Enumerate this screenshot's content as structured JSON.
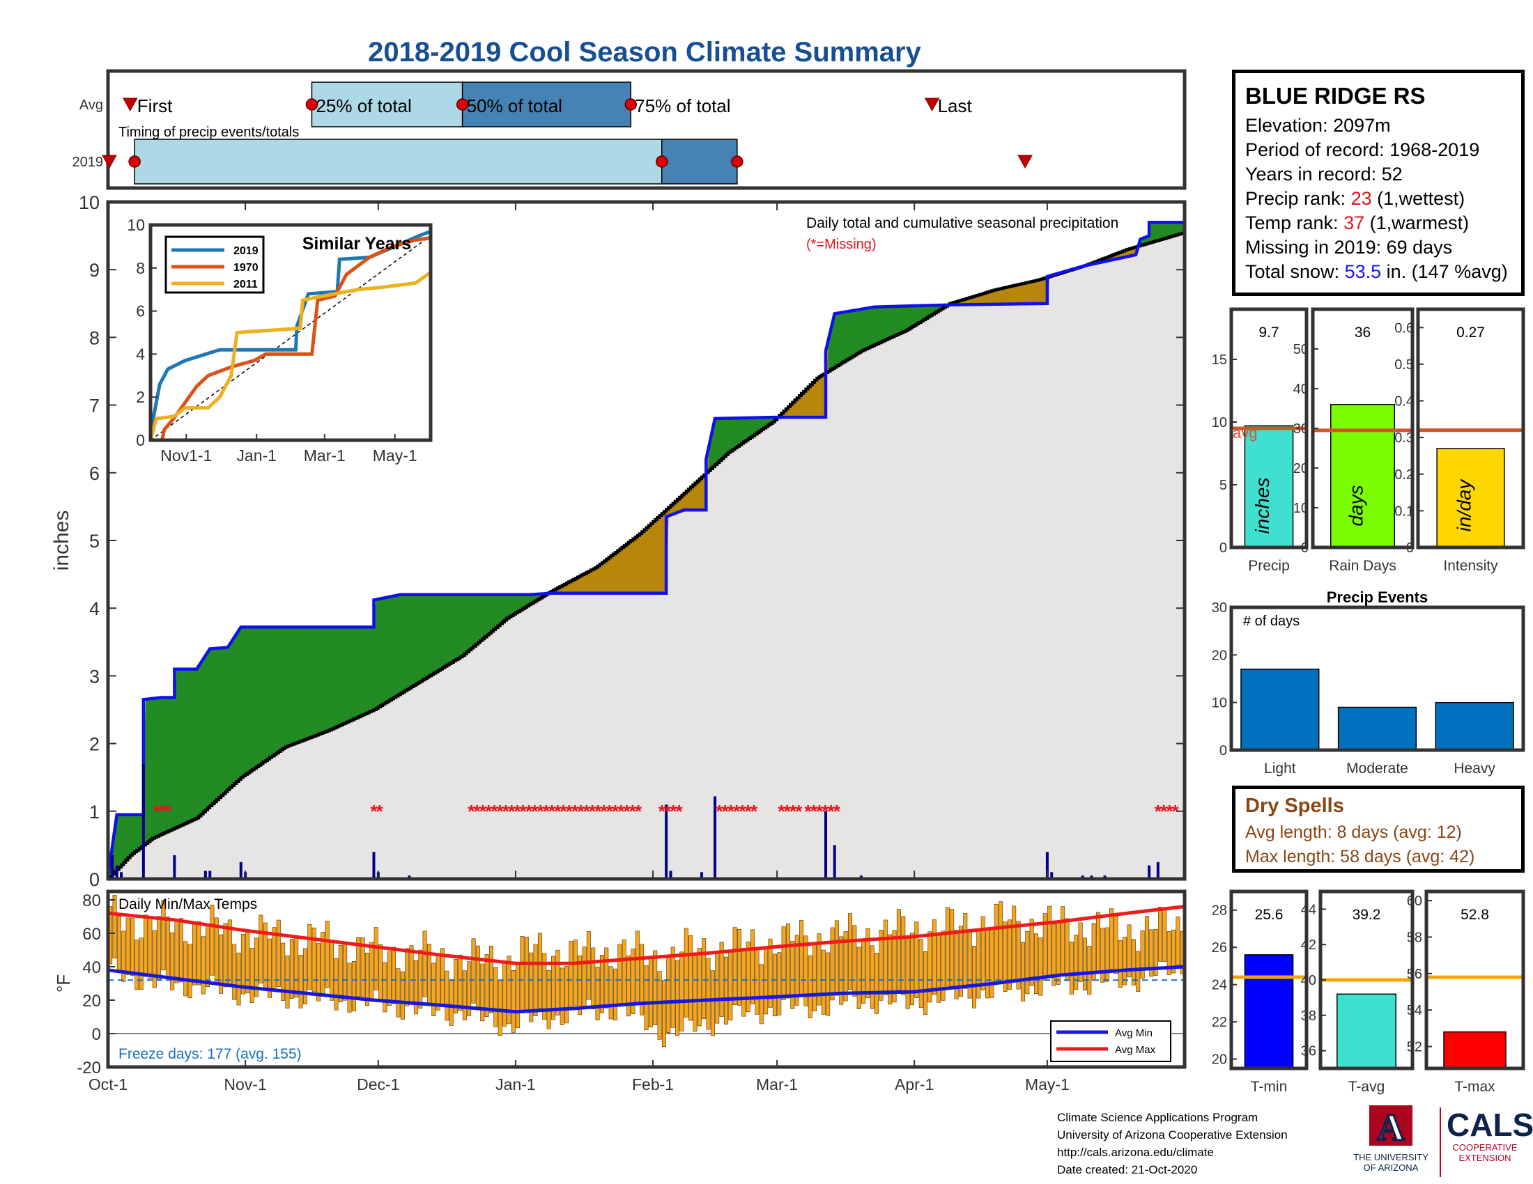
{
  "title": "2018-2019 Cool Season Climate Summary",
  "colors": {
    "title": "#174f93",
    "cumul_2019": "#1010ee",
    "avg_cumul": "#000000",
    "above_fill": "#238b23",
    "below_fill": "#b8860b",
    "avg_fill": "#e6e5e4",
    "daily_bar": "#00008b",
    "missing": "#e8141e",
    "avg_line": "#d2552a",
    "temp_bar": "#f5a51e",
    "avg_max": "#ef1a1a",
    "avg_min": "#1818dd",
    "freeze_text": "#1b6fc0",
    "light_blue": "#add8e6",
    "steel_blue": "#4682b4"
  },
  "timing": {
    "caption": "Timing of precip events/totals",
    "row_labels": [
      "Avg",
      "2019"
    ],
    "marker_labels": [
      "First",
      "25% of total",
      "50% of total",
      "75% of total",
      "Last"
    ],
    "avg": {
      "first_day": 5,
      "p25": 46,
      "p50": 80,
      "p75": 118,
      "last": 186
    },
    "y2019": {
      "first": 0,
      "p25": 6,
      "p50": 125,
      "p75": 142,
      "last": 207
    }
  },
  "main": {
    "ylabel": "inches",
    "annotation": "Daily total and cumulative seasonal precipitation",
    "missing_note": "(*=Missing)"
  },
  "inset": {
    "title": "Similar Years",
    "legend": [
      "2019",
      "1970",
      "2011"
    ]
  },
  "station": {
    "name": "BLUE RIDGE RS",
    "elevation_label": "Elevation: ",
    "elevation": "2097m",
    "period_label": "Period of record: ",
    "period": "1968-2019",
    "years_label": "Years in record: ",
    "years": "52",
    "precip_rank_label": "Precip rank: ",
    "precip_rank": "23",
    "precip_rank_note": " (1,wettest)",
    "temp_rank_label": "Temp rank: ",
    "temp_rank": "37",
    "temp_rank_note": " (1,warmest)",
    "missing_label": "Missing in 2019: ",
    "missing": "69 days",
    "snow_label": "Total snow: ",
    "snow": "53.5",
    "snow_note": " in. (147 %avg)"
  },
  "dry_spells": {
    "title": "Dry Spells",
    "avg_line": "Avg length: 8 days (avg: 12)",
    "max_line": "Max length: 58 days (avg: 42)"
  },
  "temp_panel": {
    "title": "Daily Min/Max Temps",
    "ylabel": "°F",
    "freeze_text": "Freeze days: 177 (avg. 155)",
    "legend": [
      "Avg Min",
      "Avg Max"
    ]
  },
  "footer": {
    "line1": "Climate Science Applications Program",
    "line2": "University of Arizona Cooperative Extension",
    "line3": "http://cals.arizona.edu/climate",
    "line4": " Date created: 21-Oct-2020"
  },
  "logos": {
    "ua_mark": "A",
    "ua_caption_1": "THE UNIVERSITY",
    "ua_caption_2": "OF ARIZONA",
    "cals_main": "CALS",
    "cals_sub_1": "COOPERATIVE",
    "cals_sub_2": "EXTENSION"
  },
  "chart_data": [
    {
      "id": "cumulative_precip",
      "type": "area",
      "ylabel": "inches",
      "ylim": [
        0,
        10
      ],
      "yticks": [
        0,
        1,
        2,
        3,
        4,
        5,
        6,
        7,
        8,
        9,
        10
      ],
      "x_tick_labels": [
        "Oct-1",
        "Nov-1",
        "Dec-1",
        "Jan-1",
        "Feb-1",
        "Mar-1",
        "Apr-1",
        "May-1"
      ],
      "x_tick_days": [
        0,
        31,
        61,
        92,
        123,
        151,
        182,
        212
      ],
      "x_days": 243,
      "cumulative_2019_steps": [
        [
          0,
          0
        ],
        [
          1,
          0.5
        ],
        [
          2,
          0.95
        ],
        [
          8,
          0.95
        ],
        [
          8,
          2.65
        ],
        [
          12,
          2.68
        ],
        [
          15,
          2.68
        ],
        [
          15,
          3.1
        ],
        [
          20,
          3.1
        ],
        [
          22,
          3.3
        ],
        [
          23,
          3.4
        ],
        [
          27,
          3.42
        ],
        [
          30,
          3.72
        ],
        [
          60,
          3.72
        ],
        [
          60,
          4.12
        ],
        [
          66,
          4.2
        ],
        [
          95,
          4.2
        ],
        [
          100,
          4.22
        ],
        [
          126,
          4.22
        ],
        [
          126,
          5.35
        ],
        [
          130,
          5.45
        ],
        [
          135,
          5.45
        ],
        [
          135,
          6.2
        ],
        [
          137,
          6.8
        ],
        [
          150,
          6.82
        ],
        [
          162,
          6.82
        ],
        [
          162,
          7.8
        ],
        [
          164,
          8.35
        ],
        [
          173,
          8.45
        ],
        [
          190,
          8.48
        ],
        [
          212,
          8.5
        ],
        [
          212,
          8.9
        ],
        [
          220,
          9.05
        ],
        [
          232,
          9.22
        ],
        [
          233,
          9.45
        ],
        [
          235,
          9.5
        ],
        [
          235,
          9.7
        ],
        [
          243,
          9.7
        ]
      ],
      "avg_cumulative": [
        [
          0,
          0
        ],
        [
          5,
          0.35
        ],
        [
          10,
          0.6
        ],
        [
          20,
          0.9
        ],
        [
          30,
          1.5
        ],
        [
          40,
          1.95
        ],
        [
          50,
          2.2
        ],
        [
          60,
          2.5
        ],
        [
          70,
          2.9
        ],
        [
          80,
          3.3
        ],
        [
          90,
          3.85
        ],
        [
          100,
          4.25
        ],
        [
          110,
          4.6
        ],
        [
          120,
          5.1
        ],
        [
          130,
          5.7
        ],
        [
          140,
          6.3
        ],
        [
          150,
          6.75
        ],
        [
          160,
          7.4
        ],
        [
          170,
          7.8
        ],
        [
          180,
          8.1
        ],
        [
          190,
          8.5
        ],
        [
          200,
          8.7
        ],
        [
          210,
          8.85
        ],
        [
          220,
          9.05
        ],
        [
          230,
          9.3
        ],
        [
          243,
          9.55
        ]
      ],
      "daily_precip_peaks": [
        [
          0,
          0.45
        ],
        [
          1,
          0.35
        ],
        [
          2,
          0.2
        ],
        [
          3,
          0.1
        ],
        [
          8,
          1.7
        ],
        [
          15,
          0.35
        ],
        [
          22,
          0.12
        ],
        [
          23,
          0.12
        ],
        [
          30,
          0.25
        ],
        [
          31,
          0.1
        ],
        [
          60,
          0.4
        ],
        [
          61,
          0.1
        ],
        [
          68,
          0.05
        ],
        [
          126,
          1.1
        ],
        [
          127,
          0.12
        ],
        [
          134,
          0.1
        ],
        [
          137,
          1.22
        ],
        [
          162,
          1.0
        ],
        [
          164,
          0.5
        ],
        [
          170,
          0.05
        ],
        [
          212,
          0.4
        ],
        [
          213,
          0.1
        ],
        [
          220,
          0.05
        ],
        [
          222,
          0.05
        ],
        [
          225,
          0.05
        ],
        [
          235,
          0.2
        ],
        [
          237,
          0.25
        ]
      ],
      "missing_day_ranges": [
        [
          11,
          14
        ],
        [
          60,
          62
        ],
        [
          82,
          120
        ],
        [
          125,
          129
        ],
        [
          138,
          147
        ],
        [
          152,
          156
        ],
        [
          158,
          165
        ],
        [
          237,
          241
        ]
      ]
    },
    {
      "id": "similar_years",
      "type": "line",
      "title": "Similar Years",
      "ylim": [
        0,
        10
      ],
      "yticks": [
        0,
        2,
        4,
        6,
        8,
        10
      ],
      "x_tick_labels": [
        "Nov1-1",
        "Jan-1",
        "Mar-1",
        "May-1"
      ],
      "x_tick_days": [
        31,
        92,
        151,
        212
      ],
      "series": [
        {
          "name": "2019",
          "color": "#1f77b4",
          "points": [
            [
              0,
              0
            ],
            [
              2,
              0.9
            ],
            [
              8,
              2.6
            ],
            [
              12,
              3.0
            ],
            [
              15,
              3.3
            ],
            [
              30,
              3.7
            ],
            [
              60,
              4.2
            ],
            [
              100,
              4.2
            ],
            [
              126,
              4.2
            ],
            [
              127,
              5.3
            ],
            [
              137,
              6.8
            ],
            [
              162,
              6.9
            ],
            [
              164,
              8.4
            ],
            [
              190,
              8.5
            ],
            [
              212,
              9.0
            ],
            [
              233,
              9.5
            ],
            [
              243,
              9.7
            ]
          ]
        },
        {
          "name": "1970",
          "color": "#d95319",
          "points": [
            [
              0,
              0
            ],
            [
              10,
              0
            ],
            [
              12,
              0.5
            ],
            [
              20,
              1.0
            ],
            [
              40,
              2.5
            ],
            [
              50,
              3.0
            ],
            [
              70,
              3.4
            ],
            [
              90,
              3.7
            ],
            [
              100,
              4.0
            ],
            [
              140,
              4.0
            ],
            [
              145,
              6.5
            ],
            [
              160,
              6.7
            ],
            [
              170,
              7.7
            ],
            [
              190,
              8.5
            ],
            [
              210,
              9.0
            ],
            [
              230,
              9.3
            ],
            [
              243,
              9.4
            ]
          ]
        },
        {
          "name": "2011",
          "color": "#edb120",
          "points": [
            [
              0,
              0
            ],
            [
              5,
              1.0
            ],
            [
              20,
              1.1
            ],
            [
              30,
              1.5
            ],
            [
              50,
              1.5
            ],
            [
              60,
              2.0
            ],
            [
              70,
              3.0
            ],
            [
              75,
              5.0
            ],
            [
              130,
              5.2
            ],
            [
              132,
              6.5
            ],
            [
              150,
              6.7
            ],
            [
              180,
              7.0
            ],
            [
              200,
              7.1
            ],
            [
              230,
              7.3
            ],
            [
              243,
              7.8
            ]
          ]
        }
      ]
    },
    {
      "id": "totals_precip",
      "type": "bar",
      "categories": [
        "Precip"
      ],
      "values": [
        9.7
      ],
      "bar_label": "inches",
      "value_label": "9.7",
      "avg": 9.5,
      "avg_label": "avg",
      "ylim": [
        0,
        19
      ],
      "yticks": [
        0,
        5,
        10,
        15
      ]
    },
    {
      "id": "totals_rain_days",
      "type": "bar",
      "categories": [
        "Rain Days"
      ],
      "values": [
        36
      ],
      "bar_label": "days",
      "value_label": "36",
      "avg": 29.5,
      "ylim": [
        0,
        60
      ],
      "yticks": [
        0,
        10,
        20,
        30,
        40,
        50
      ]
    },
    {
      "id": "totals_intensity",
      "type": "bar",
      "categories": [
        "Intensity"
      ],
      "values": [
        0.27
      ],
      "bar_label": "in/day",
      "value_label": "0.27",
      "avg": 0.32,
      "ylim": [
        0,
        0.65
      ],
      "yticks": [
        0,
        0.1,
        0.2,
        0.3,
        0.4,
        0.5,
        0.6
      ]
    },
    {
      "id": "precip_events",
      "type": "bar",
      "title": "Precip Events",
      "ylabel": "# of days",
      "categories": [
        "Light",
        "Moderate",
        "Heavy"
      ],
      "values": [
        17,
        9,
        10
      ],
      "ylim": [
        0,
        30
      ],
      "yticks": [
        0,
        10,
        20,
        30
      ]
    },
    {
      "id": "daily_temps",
      "type": "bar",
      "title": "Daily Min/Max Temps",
      "ylabel": "°F",
      "ylim": [
        -20,
        85
      ],
      "yticks": [
        -20,
        0,
        20,
        40,
        60,
        80
      ],
      "x_tick_labels": [
        "Oct-1",
        "Nov-1",
        "Dec-1",
        "Jan-1",
        "Feb-1",
        "Mar-1",
        "Apr-1",
        "May-1"
      ],
      "x_tick_days": [
        0,
        31,
        61,
        92,
        123,
        151,
        182,
        212
      ],
      "x_days": 243,
      "freeze_level": 32,
      "avg_max_points": [
        [
          0,
          72
        ],
        [
          15,
          68
        ],
        [
          30,
          62
        ],
        [
          45,
          57
        ],
        [
          60,
          52
        ],
        [
          75,
          47
        ],
        [
          92,
          42
        ],
        [
          105,
          42
        ],
        [
          120,
          45
        ],
        [
          135,
          48
        ],
        [
          151,
          52
        ],
        [
          165,
          55
        ],
        [
          182,
          58
        ],
        [
          200,
          63
        ],
        [
          215,
          67
        ],
        [
          230,
          72
        ],
        [
          243,
          76
        ]
      ],
      "avg_min_points": [
        [
          0,
          38
        ],
        [
          15,
          33
        ],
        [
          30,
          28
        ],
        [
          45,
          24
        ],
        [
          60,
          20
        ],
        [
          75,
          17
        ],
        [
          92,
          13
        ],
        [
          105,
          15
        ],
        [
          120,
          18
        ],
        [
          135,
          20
        ],
        [
          151,
          22
        ],
        [
          165,
          24
        ],
        [
          182,
          25
        ],
        [
          200,
          30
        ],
        [
          215,
          35
        ],
        [
          230,
          38
        ],
        [
          243,
          40
        ]
      ],
      "daily_temp_samples": [
        [
          0,
          38,
          70
        ],
        [
          10,
          30,
          66
        ],
        [
          20,
          28,
          65
        ],
        [
          30,
          24,
          60
        ],
        [
          40,
          22,
          58
        ],
        [
          50,
          20,
          55
        ],
        [
          60,
          18,
          50
        ],
        [
          70,
          14,
          48
        ],
        [
          80,
          12,
          44
        ],
        [
          90,
          5,
          45
        ],
        [
          95,
          8,
          50
        ],
        [
          105,
          12,
          48
        ],
        [
          115,
          15,
          50
        ],
        [
          125,
          0,
          45
        ],
        [
          130,
          2,
          50
        ],
        [
          140,
          10,
          52
        ],
        [
          150,
          15,
          55
        ],
        [
          160,
          16,
          58
        ],
        [
          170,
          20,
          60
        ],
        [
          180,
          18,
          62
        ],
        [
          190,
          22,
          64
        ],
        [
          200,
          25,
          68
        ],
        [
          210,
          28,
          66
        ],
        [
          220,
          30,
          64
        ],
        [
          230,
          32,
          62
        ],
        [
          240,
          38,
          65
        ]
      ],
      "legend": [
        "Avg Min",
        "Avg Max"
      ]
    },
    {
      "id": "temp_min",
      "type": "bar",
      "categories": [
        "T-min"
      ],
      "values": [
        25.6
      ],
      "value_label": "25.6",
      "avg": 24.4,
      "ylim": [
        19.5,
        29
      ],
      "yticks": [
        20,
        22,
        24,
        26,
        28
      ]
    },
    {
      "id": "temp_avg",
      "type": "bar",
      "categories": [
        "T-avg"
      ],
      "values": [
        39.2
      ],
      "value_label": "39.2",
      "avg": 40.0,
      "ylim": [
        35,
        45
      ],
      "yticks": [
        36,
        38,
        40,
        42,
        44
      ]
    },
    {
      "id": "temp_max",
      "type": "bar",
      "categories": [
        "T-max"
      ],
      "values": [
        52.8
      ],
      "value_label": "52.8",
      "avg": 55.8,
      "ylim": [
        50.8,
        60.5
      ],
      "yticks": [
        52,
        54,
        56,
        58,
        60
      ]
    }
  ]
}
